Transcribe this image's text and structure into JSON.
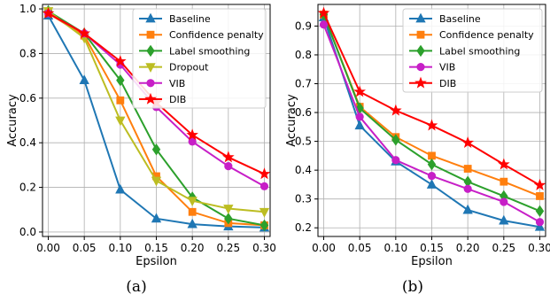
{
  "chart_data": [
    {
      "type": "line",
      "caption": "(a)",
      "xlabel": "Epsilon",
      "ylabel": "Accuracy",
      "x": [
        0.0,
        0.05,
        0.1,
        0.15,
        0.2,
        0.25,
        0.3
      ],
      "x_ticks": [
        "0.00",
        "0.05",
        "0.10",
        "0.15",
        "0.20",
        "0.25",
        "0.30"
      ],
      "y_ticks": [
        "0.0",
        "0.2",
        "0.4",
        "0.6",
        "0.8",
        "1.0"
      ],
      "xlim": [
        -0.008,
        0.308
      ],
      "ylim": [
        -0.02,
        1.02
      ],
      "grid": true,
      "legend_position": "top-right",
      "series": [
        {
          "name": "Baseline",
          "color": "#1f77b4",
          "marker": "triangle-up",
          "values": [
            0.97,
            0.68,
            0.19,
            0.06,
            0.035,
            0.025,
            0.02
          ]
        },
        {
          "name": "Confidence penalty",
          "color": "#ff7f0e",
          "marker": "square",
          "values": [
            0.98,
            0.88,
            0.59,
            0.25,
            0.09,
            0.04,
            0.03
          ]
        },
        {
          "name": "Label smoothing",
          "color": "#2ca02c",
          "marker": "diamond",
          "values": [
            0.99,
            0.89,
            0.68,
            0.37,
            0.155,
            0.06,
            0.03
          ]
        },
        {
          "name": "Dropout",
          "color": "#bcbd22",
          "marker": "triangle-down",
          "values": [
            0.99,
            0.87,
            0.5,
            0.23,
            0.14,
            0.105,
            0.09
          ]
        },
        {
          "name": "VIB",
          "color": "#c71fc7",
          "marker": "circle",
          "values": [
            0.98,
            0.89,
            0.75,
            0.56,
            0.405,
            0.295,
            0.205
          ]
        },
        {
          "name": "DIB",
          "color": "#ff0000",
          "marker": "star",
          "values": [
            0.98,
            0.89,
            0.765,
            0.58,
            0.435,
            0.335,
            0.26
          ]
        }
      ]
    },
    {
      "type": "line",
      "caption": "(b)",
      "xlabel": "Epsilon",
      "ylabel": "Accuracy",
      "x": [
        0.0,
        0.05,
        0.1,
        0.15,
        0.2,
        0.25,
        0.3
      ],
      "x_ticks": [
        "0.00",
        "0.05",
        "0.10",
        "0.15",
        "0.20",
        "0.25",
        "0.30"
      ],
      "y_ticks": [
        "0.2",
        "0.3",
        "0.4",
        "0.5",
        "0.6",
        "0.7",
        "0.8",
        "0.9"
      ],
      "xlim": [
        -0.008,
        0.308
      ],
      "ylim": [
        0.17,
        0.975
      ],
      "grid": true,
      "legend_position": "top-right",
      "series": [
        {
          "name": "Baseline",
          "color": "#1f77b4",
          "marker": "triangle-up",
          "values": [
            0.93,
            0.555,
            0.43,
            0.35,
            0.262,
            0.225,
            0.203
          ]
        },
        {
          "name": "Confidence penalty",
          "color": "#ff7f0e",
          "marker": "square",
          "values": [
            0.94,
            0.62,
            0.515,
            0.45,
            0.405,
            0.36,
            0.31
          ]
        },
        {
          "name": "Label smoothing",
          "color": "#2ca02c",
          "marker": "diamond",
          "values": [
            0.94,
            0.615,
            0.505,
            0.42,
            0.36,
            0.31,
            0.258
          ]
        },
        {
          "name": "VIB",
          "color": "#c71fc7",
          "marker": "circle",
          "values": [
            0.905,
            0.585,
            0.435,
            0.38,
            0.335,
            0.29,
            0.22
          ]
        },
        {
          "name": "DIB",
          "color": "#ff0000",
          "marker": "star",
          "values": [
            0.945,
            0.672,
            0.607,
            0.555,
            0.495,
            0.42,
            0.348
          ]
        }
      ]
    }
  ]
}
